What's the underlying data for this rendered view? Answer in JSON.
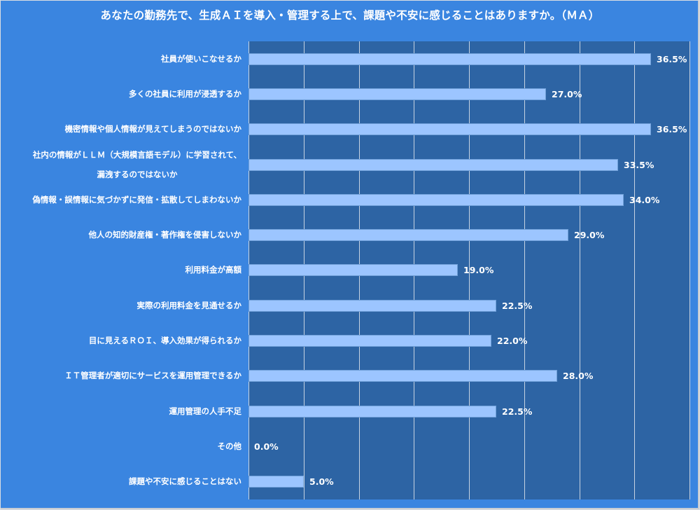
{
  "chart_data": {
    "type": "bar",
    "orientation": "horizontal",
    "title": "あなたの勤務先で、生成ＡＩを導入・管理する上で、課題や不安に感じることはありますか。（ＭＡ）",
    "xlabel": "",
    "ylabel": "",
    "xlim": [
      0,
      40
    ],
    "grid_step": 5,
    "grid": true,
    "legend": "none",
    "value_format": "percent_1dp",
    "colors": {
      "background": "#3a85e0",
      "plot_background": "#2d64a4",
      "bar": "#9cc5ff",
      "gridline": "#c7d3e2",
      "text": "#ffffff"
    },
    "categories": [
      "社員が使いこなせるか",
      "多くの社員に利用が浸透するか",
      "機密情報や個人情報が見えてしまうのではないか",
      "社内の情報がＬＬＭ（大規模言語モデル）に学習されて、\n漏洩するのではないか",
      "偽情報・誤情報に気づかずに発信・拡散してしまわないか",
      "他人の知的財産権・著作権を侵害しないか",
      "利用料金が高額",
      "実際の利用料金を見通せるか",
      "目に見えるＲＯＩ、導入効果が得られるか",
      "ＩＴ管理者が適切にサービスを運用管理できるか",
      "運用管理の人手不足",
      "その他",
      "課題や不安に感じることはない"
    ],
    "values": [
      36.5,
      27.0,
      36.5,
      33.5,
      34.0,
      29.0,
      19.0,
      22.5,
      22.0,
      28.0,
      22.5,
      0.0,
      5.0
    ],
    "labels": [
      "36.5%",
      "27.0%",
      "36.5%",
      "33.5%",
      "34.0%",
      "29.0%",
      "19.0%",
      "22.5%",
      "22.0%",
      "28.0%",
      "22.5%",
      "0.0%",
      "5.0%"
    ]
  },
  "category_lines": [
    [
      "社員が使いこなせるか"
    ],
    [
      "多くの社員に利用が浸透するか"
    ],
    [
      "機密情報や個人情報が見えてしまうのではないか"
    ],
    [
      "社内の情報がＬＬＭ（大規模言語モデル）に学習されて、",
      "漏洩するのではないか"
    ],
    [
      "偽情報・誤情報に気づかずに発信・拡散してしまわないか"
    ],
    [
      "他人の知的財産権・著作権を侵害しないか"
    ],
    [
      "利用料金が高額"
    ],
    [
      "実際の利用料金を見通せるか"
    ],
    [
      "目に見えるＲＯＩ、導入効果が得られるか"
    ],
    [
      "ＩＴ管理者が適切にサービスを運用管理できるか"
    ],
    [
      "運用管理の人手不足"
    ],
    [
      "その他"
    ],
    [
      "課題や不安に感じることはない"
    ]
  ]
}
